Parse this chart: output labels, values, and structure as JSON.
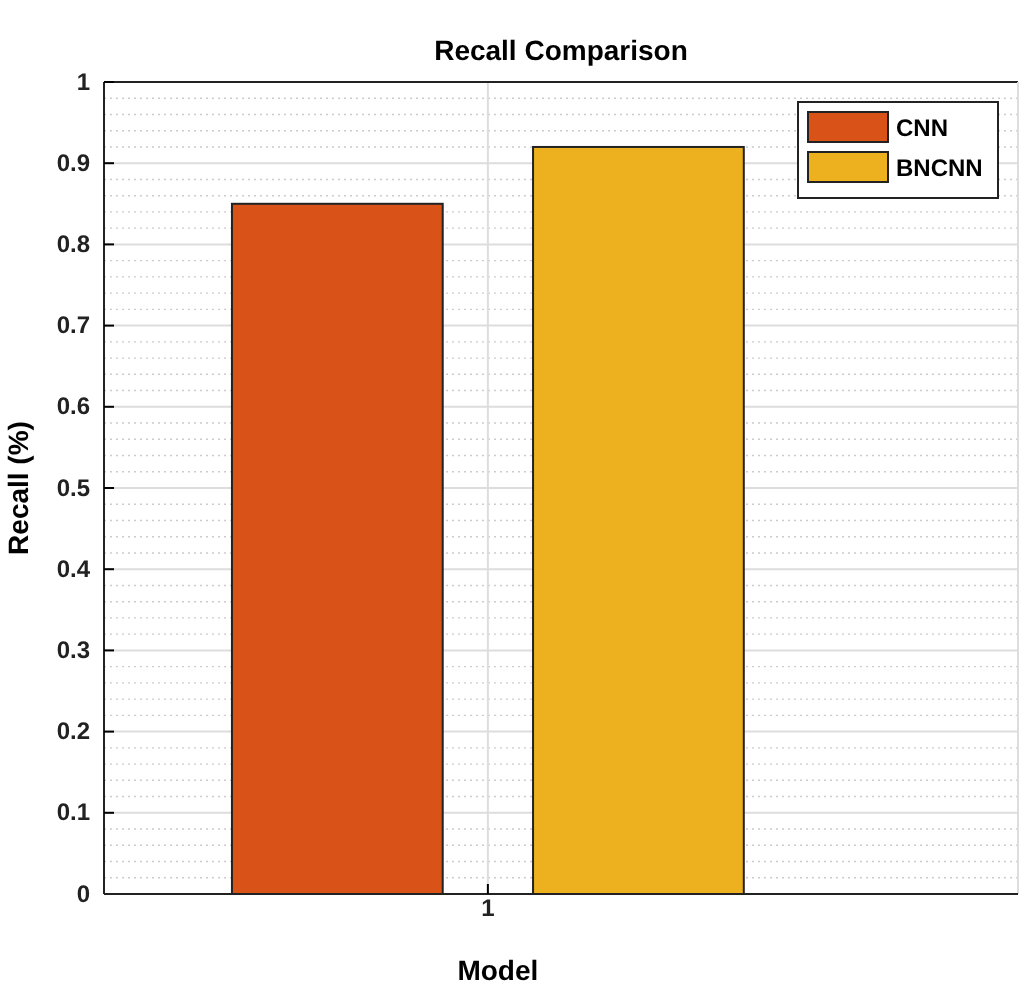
{
  "chart_data": {
    "type": "bar",
    "title": "Recall Comparison",
    "xlabel": "Model",
    "ylabel": "Recall (%)",
    "categories": [
      "1"
    ],
    "series": [
      {
        "name": "CNN",
        "color": "#d95319",
        "values": [
          0.85
        ]
      },
      {
        "name": "BNCNN",
        "color": "#edb120",
        "values": [
          0.92
        ]
      }
    ],
    "ylim": [
      0,
      1
    ],
    "yticks": [
      0,
      0.1,
      0.2,
      0.3,
      0.4,
      0.5,
      0.6,
      0.7,
      0.8,
      0.9,
      1
    ],
    "grid": true,
    "legend": "top right"
  }
}
